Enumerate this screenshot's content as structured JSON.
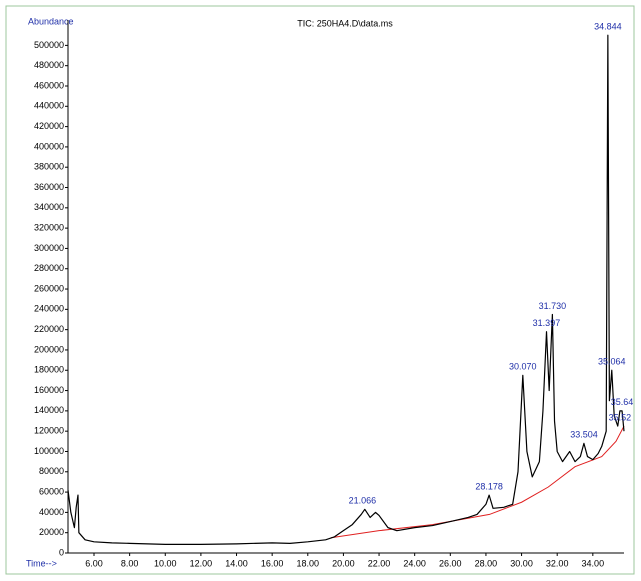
{
  "chart_data": {
    "type": "line",
    "title": "TIC: 250HA4.D\\data.ms",
    "y_label": "Abundance",
    "x_label": "Time-->",
    "color": "#000000",
    "xlim": [
      4.54,
      35.75
    ],
    "ylim": [
      0,
      525000
    ],
    "xticks": [
      {
        "value": 6,
        "label": "6.00"
      },
      {
        "value": 8,
        "label": "8.00"
      },
      {
        "value": 10,
        "label": "10.00"
      },
      {
        "value": 12,
        "label": "12.00"
      },
      {
        "value": 14,
        "label": "14.00"
      },
      {
        "value": 16,
        "label": "16.00"
      },
      {
        "value": 18,
        "label": "18.00"
      },
      {
        "value": 20,
        "label": "20.00"
      },
      {
        "value": 22,
        "label": "22.00"
      },
      {
        "value": 24,
        "label": "24.00"
      },
      {
        "value": 26,
        "label": "26.00"
      },
      {
        "value": 28,
        "label": "28.00"
      },
      {
        "value": 30,
        "label": "30.00"
      },
      {
        "value": 32,
        "label": "32.00"
      },
      {
        "value": 34,
        "label": "34.00"
      }
    ],
    "yticks": [
      0,
      20000,
      40000,
      60000,
      80000,
      100000,
      120000,
      140000,
      160000,
      180000,
      200000,
      220000,
      240000,
      260000,
      280000,
      300000,
      320000,
      340000,
      360000,
      380000,
      400000,
      420000,
      440000,
      460000,
      480000,
      500000
    ],
    "x": [
      4.54,
      4.7,
      4.9,
      5.0,
      5.1,
      5.15,
      5.5,
      6.0,
      7.0,
      8.0,
      10.0,
      12.0,
      14.0,
      16.0,
      17.0,
      18.0,
      19.0,
      19.5,
      20.0,
      20.5,
      21.0,
      21.2,
      21.5,
      21.8,
      22.0,
      22.5,
      23.0,
      24.0,
      25.0,
      26.0,
      27.0,
      27.5,
      28.0,
      28.18,
      28.4,
      29.0,
      29.5,
      29.8,
      30.07,
      30.3,
      30.6,
      31.0,
      31.2,
      31.4,
      31.55,
      31.73,
      31.85,
      32.0,
      32.3,
      32.7,
      33.0,
      33.3,
      33.5,
      33.7,
      34.0,
      34.3,
      34.5,
      34.75,
      34.844,
      34.93,
      35.064,
      35.2,
      35.4,
      35.52,
      35.64,
      35.75
    ],
    "values": [
      62000,
      40000,
      25000,
      45000,
      57000,
      20000,
      13000,
      11000,
      10000,
      9500,
      8500,
      8500,
      9000,
      10000,
      9500,
      11000,
      13000,
      16000,
      22000,
      28000,
      38000,
      43000,
      35000,
      40000,
      37000,
      25000,
      22000,
      25000,
      27000,
      31000,
      35000,
      38000,
      48000,
      57000,
      44000,
      45000,
      48000,
      80000,
      175000,
      100000,
      75000,
      90000,
      140000,
      218000,
      160000,
      235000,
      130000,
      100000,
      90000,
      100000,
      90000,
      95000,
      108000,
      95000,
      92000,
      98000,
      105000,
      120000,
      510000,
      150000,
      180000,
      135000,
      125000,
      140000,
      140000,
      120000
    ],
    "baseline": {
      "color": "#e02020",
      "x": [
        19.3,
        22.0,
        25.0,
        28.2,
        30.0,
        31.5,
        33.0,
        34.5,
        35.3,
        35.75
      ],
      "values": [
        15000,
        22000,
        28000,
        38000,
        50000,
        65000,
        85000,
        95000,
        110000,
        125000
      ]
    },
    "peaks": [
      {
        "label": "21.066",
        "x": 21.066,
        "y": 43000
      },
      {
        "label": "28.178",
        "x": 28.178,
        "y": 57000
      },
      {
        "label": "30.070",
        "x": 30.07,
        "y": 175000
      },
      {
        "label": "31.397",
        "x": 31.397,
        "y": 218000
      },
      {
        "label": "31.730",
        "x": 31.73,
        "y": 235000
      },
      {
        "label": "33.504",
        "x": 33.504,
        "y": 108000
      },
      {
        "label": "34.844",
        "x": 34.844,
        "y": 510000
      },
      {
        "label": "35.064",
        "x": 35.064,
        "y": 180000
      },
      {
        "label": "35.64",
        "x": 35.64,
        "y": 140000
      },
      {
        "label": "35.52",
        "x": 35.52,
        "y": 125000
      }
    ],
    "label_color": "#1f2fa8"
  }
}
